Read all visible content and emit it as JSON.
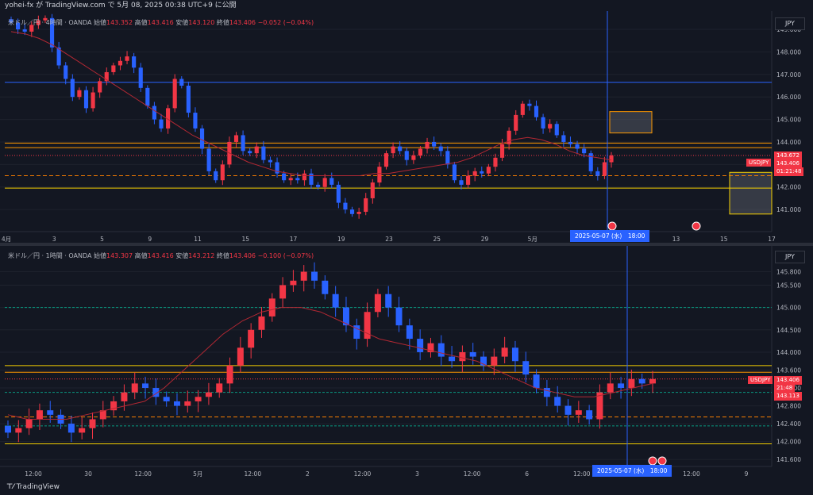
{
  "header": {
    "text": "yohei-fx が TradingView.com で 5月 08, 2025 00:38 UTC+9 に公開"
  },
  "footer": {
    "logo_text": "TradingView"
  },
  "panels": [
    {
      "legend": {
        "symbol": "米ドル／円 · 4時間 · OANDA",
        "open_label": "始値",
        "open": "143.352",
        "high_label": "高値",
        "high": "143.416",
        "low_label": "安値",
        "low": "143.120",
        "close_label": "終値",
        "close": "143.406",
        "change": "−0.052 (−0.04%)"
      },
      "currency": "JPY",
      "symbol_tag": "USDJPY",
      "price_tags": [
        "143.672",
        "143.406",
        "01:21:48"
      ],
      "date_tag": "2025-05-07 (水)　18:00"
    },
    {
      "legend": {
        "symbol": "米ドル／円 · 1時間 · OANDA",
        "open_label": "始値",
        "open": "143.307",
        "high_label": "高値",
        "high": "143.416",
        "low_label": "安値",
        "low": "143.212",
        "close_label": "終値",
        "close": "143.406",
        "change": "−0.100 (−0.07%)"
      },
      "currency": "JPY",
      "symbol_tag": "USDJPY",
      "price_tags": [
        "143.406",
        "21:48",
        "143.113"
      ],
      "date_tag": "2025-05-07 (水)　18:00"
    }
  ],
  "chart_data": [
    {
      "type": "candlestick",
      "timeframe": "4時間",
      "ylim": [
        140.3,
        149.6
      ],
      "y_ticks": [
        141.0,
        142.0,
        143.0,
        144.0,
        145.0,
        146.0,
        147.0,
        148.0,
        149.0
      ],
      "x_ticks": [
        "4月",
        "3",
        "5",
        "9",
        "11",
        "15",
        "17",
        "19",
        "23",
        "25",
        "29",
        "5月",
        "3",
        "7",
        "13",
        "15",
        "17"
      ],
      "horizontal_lines": {
        "blue": 146.65,
        "orange": [
          143.95,
          143.75
        ],
        "red_dashed": 142.5,
        "yellow": 141.95,
        "dotted": 143.4
      },
      "zones": [
        {
          "top": 145.35,
          "bottom": 144.4
        },
        {
          "top": 142.65,
          "bottom": 140.8
        }
      ],
      "closes": [
        149.3,
        149.0,
        148.9,
        149.2,
        149.4,
        149.5,
        148.2,
        147.4,
        146.8,
        146.0,
        146.3,
        145.5,
        146.2,
        146.7,
        147.1,
        147.4,
        147.6,
        147.8,
        147.3,
        146.4,
        145.6,
        145.0,
        144.6,
        145.5,
        146.8,
        146.5,
        145.3,
        144.6,
        143.7,
        142.7,
        142.3,
        143.0,
        144.0,
        144.3,
        143.6,
        143.5,
        143.8,
        143.2,
        143.1,
        142.6,
        142.3,
        142.4,
        142.3,
        142.6,
        142.1,
        142.0,
        142.4,
        142.1,
        141.3,
        141.0,
        140.8,
        140.9,
        141.5,
        142.2,
        142.9,
        143.5,
        143.8,
        143.6,
        143.2,
        143.4,
        143.7,
        144.0,
        143.8,
        143.6,
        143.0,
        142.3,
        142.1,
        142.5,
        142.7,
        142.6,
        142.9,
        143.3,
        143.9,
        144.5,
        145.2,
        145.7,
        145.6,
        145.1,
        144.6,
        144.8,
        144.3,
        144.0,
        143.9,
        143.7,
        143.5,
        142.7,
        142.5,
        143.1,
        143.4
      ],
      "ma": [
        148.9,
        148.8,
        148.6,
        148.3,
        147.9,
        147.5,
        147.1,
        146.7,
        146.3,
        145.9,
        145.5,
        145.1,
        144.7,
        144.3,
        144.0,
        143.7,
        143.4,
        143.1,
        142.9,
        142.7,
        142.6,
        142.5,
        142.5,
        142.5,
        142.5,
        142.5,
        142.6,
        142.6,
        142.7,
        142.8,
        142.9,
        143.0,
        143.1,
        143.3,
        143.6,
        143.9,
        144.1,
        144.2,
        144.1,
        143.9,
        143.6,
        143.4,
        143.3,
        143.2
      ]
    },
    {
      "type": "candlestick",
      "timeframe": "1時間",
      "ylim": [
        141.55,
        146.2
      ],
      "y_ticks": [
        141.6,
        142.0,
        142.4,
        142.8,
        143.2,
        143.6,
        144.0,
        144.5,
        145.0,
        145.5,
        145.8
      ],
      "x_ticks": [
        "12:00",
        "30",
        "12:00",
        "5月",
        "12:00",
        "2",
        "12:00",
        "3",
        "12:00",
        "6",
        "12:00",
        "7",
        "12:00",
        "9"
      ],
      "horizontal_lines": {
        "yellow": [
          143.7,
          141.95
        ],
        "orange": 143.55,
        "teal": [
          145.0,
          143.1,
          142.35
        ],
        "red_dashed": 142.55,
        "dotted": 143.4
      },
      "closes": [
        142.2,
        142.3,
        142.5,
        142.7,
        142.6,
        142.4,
        142.2,
        142.3,
        142.5,
        142.7,
        142.9,
        143.1,
        143.3,
        143.2,
        143.0,
        142.9,
        142.8,
        142.9,
        143.0,
        143.1,
        143.3,
        143.7,
        144.1,
        144.5,
        144.8,
        145.2,
        145.5,
        145.6,
        145.8,
        145.6,
        145.3,
        145.0,
        144.6,
        144.3,
        144.9,
        145.3,
        145.0,
        144.6,
        144.3,
        144.0,
        144.2,
        143.9,
        143.8,
        144.0,
        143.9,
        143.7,
        143.9,
        144.1,
        143.8,
        143.5,
        143.2,
        143.0,
        142.8,
        142.6,
        142.7,
        142.5,
        143.1,
        143.3,
        143.2,
        143.4,
        143.3,
        143.4
      ],
      "ma": [
        142.6,
        142.5,
        142.5,
        142.5,
        142.6,
        142.7,
        142.8,
        142.9,
        143.2,
        143.6,
        144.0,
        144.4,
        144.7,
        144.9,
        145.0,
        145.0,
        144.9,
        144.7,
        144.5,
        144.3,
        144.2,
        144.1,
        144.0,
        143.9,
        143.8,
        143.6,
        143.4,
        143.2,
        143.1,
        143.0,
        143.0,
        143.1,
        143.2,
        143.3
      ]
    }
  ]
}
